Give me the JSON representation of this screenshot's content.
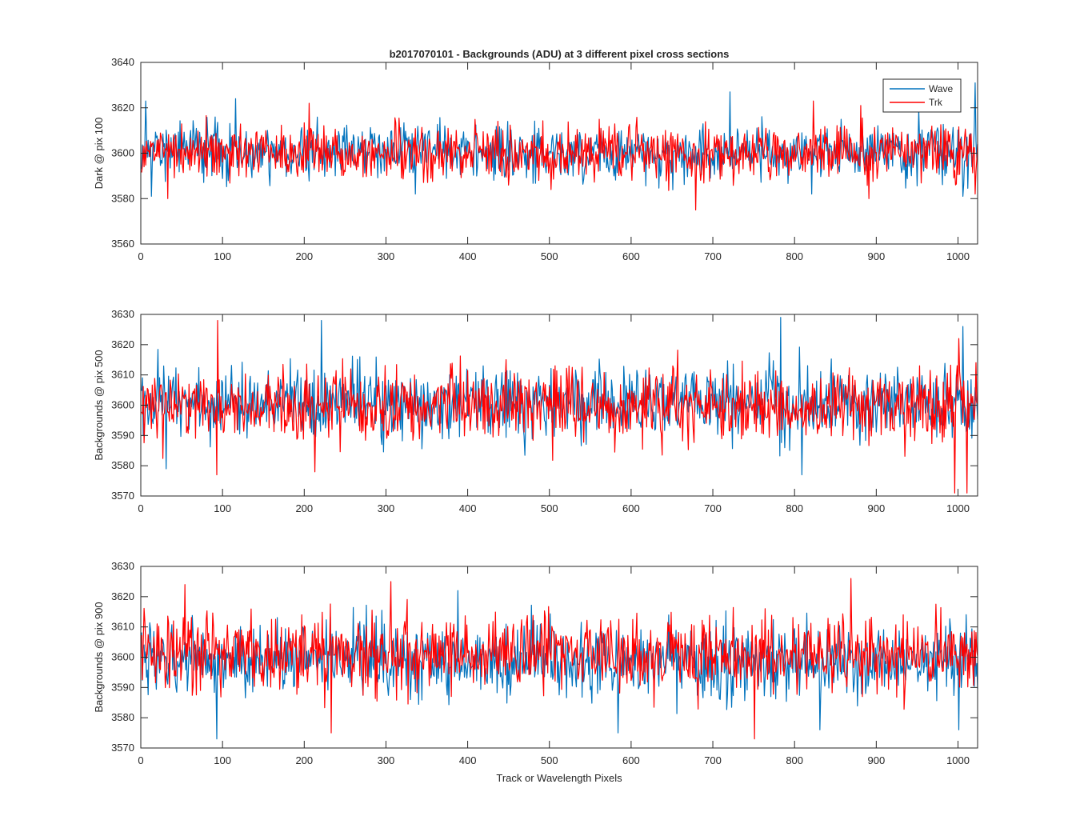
{
  "chart_data": [
    {
      "type": "line",
      "title": "b2017070101 - Backgrounds (ADU) at 3 different pixel cross sections",
      "xlabel": "",
      "ylabel": "Dark @ pix 100",
      "xlim": [
        0,
        1024
      ],
      "ylim": [
        3560,
        3640
      ],
      "xticks": [
        0,
        100,
        200,
        300,
        400,
        500,
        600,
        700,
        800,
        900,
        1000
      ],
      "yticks": [
        3560,
        3580,
        3600,
        3620,
        3640
      ],
      "legend": {
        "position": "top-right",
        "entries": [
          "Wave",
          "Trk"
        ]
      },
      "series": [
        {
          "name": "Wave",
          "color": "#0072BD",
          "mean": 3601,
          "std": 7,
          "peaks": [
            [
              5,
              3623
            ],
            [
              115,
              3624
            ],
            [
              720,
              3627
            ],
            [
              1020,
              3631
            ]
          ],
          "troughs": [
            [
              12,
              3581
            ],
            [
              335,
              3582
            ],
            [
              820,
              3582
            ],
            [
              1005,
              3581
            ]
          ]
        },
        {
          "name": "Trk",
          "color": "#FF0000",
          "mean": 3600,
          "std": 7,
          "peaks": [
            [
              32,
              3622
            ],
            [
              205,
              3622
            ],
            [
              822,
              3623
            ],
            [
              880,
              3621
            ]
          ],
          "troughs": [
            [
              32,
              3580
            ],
            [
              678,
              3575
            ],
            [
              890,
              3580
            ],
            [
              1020,
              3582
            ]
          ]
        }
      ]
    },
    {
      "type": "line",
      "title": "",
      "xlabel": "",
      "ylabel": "Backgrounds @ pix 500",
      "xlim": [
        0,
        1024
      ],
      "ylim": [
        3570,
        3630
      ],
      "xticks": [
        0,
        100,
        200,
        300,
        400,
        500,
        600,
        700,
        800,
        900,
        1000
      ],
      "yticks": [
        3570,
        3580,
        3590,
        3600,
        3610,
        3620,
        3630
      ],
      "series": [
        {
          "name": "Wave",
          "color": "#0072BD",
          "mean": 3601,
          "std": 7,
          "peaks": [
            [
              220,
              3628
            ],
            [
              782,
              3629
            ],
            [
              1005,
              3626
            ]
          ],
          "troughs": [
            [
              30,
              3579
            ],
            [
              808,
              3577
            ]
          ]
        },
        {
          "name": "Trk",
          "color": "#FF0000",
          "mean": 3600,
          "std": 7,
          "peaks": [
            [
              93,
              3628
            ],
            [
              1000,
              3622
            ]
          ],
          "troughs": [
            [
              92,
              3577
            ],
            [
              212,
              3578
            ],
            [
              995,
              3571
            ],
            [
              1010,
              3571
            ]
          ]
        }
      ]
    },
    {
      "type": "line",
      "title": "",
      "xlabel": "Track or Wavelength Pixels",
      "ylabel": "Backgrounds @ pix 900",
      "xlim": [
        0,
        1024
      ],
      "ylim": [
        3570,
        3630
      ],
      "xticks": [
        0,
        100,
        200,
        300,
        400,
        500,
        600,
        700,
        800,
        900,
        1000
      ],
      "yticks": [
        3570,
        3580,
        3590,
        3600,
        3610,
        3620,
        3630
      ],
      "series": [
        {
          "name": "Wave",
          "color": "#0072BD",
          "mean": 3599,
          "std": 7,
          "peaks": [
            [
              387,
              3622
            ],
            [
              1000,
              3622
            ]
          ],
          "troughs": [
            [
              92,
              3573
            ],
            [
              583,
              3575
            ],
            [
              830,
              3576
            ],
            [
              1000,
              3576
            ]
          ]
        },
        {
          "name": "Trk",
          "color": "#FF0000",
          "mean": 3601,
          "std": 7,
          "peaks": [
            [
              53,
              3624
            ],
            [
              305,
              3625
            ],
            [
              868,
              3626
            ]
          ],
          "troughs": [
            [
              232,
              3575
            ],
            [
              750,
              3573
            ]
          ]
        }
      ]
    }
  ]
}
